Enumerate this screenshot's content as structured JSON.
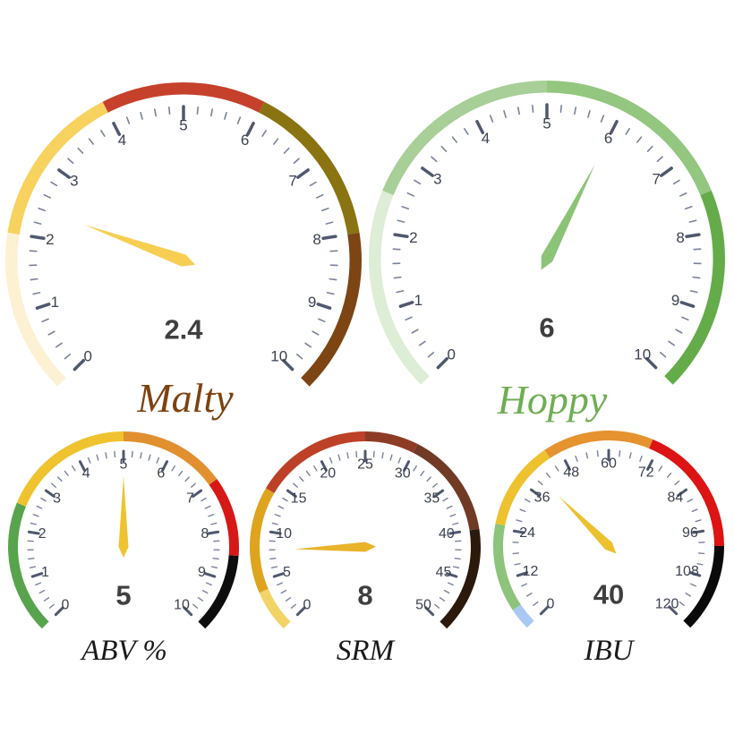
{
  "page": {
    "background": "#ffffff"
  },
  "chart_data": [
    {
      "type": "gauge",
      "name": "malty",
      "title": "Malty",
      "title_color": "#7E4210",
      "min": 0,
      "max": 10,
      "value": 2.4,
      "value_display": "2.4",
      "value_color": "#3F3F3F",
      "start_angle": -135,
      "end_angle": 135,
      "tick_step": 1,
      "minor_per_major": 4,
      "tick_labels": [
        "0",
        "1",
        "2",
        "3",
        "4",
        "5",
        "6",
        "7",
        "8",
        "9",
        "10"
      ],
      "bands": [
        {
          "from": 0,
          "to": 2,
          "color": "#FCF1D2"
        },
        {
          "from": 2,
          "to": 4,
          "color": "#F7D25E"
        },
        {
          "from": 4,
          "to": 6,
          "color": "#C5412B"
        },
        {
          "from": 6,
          "to": 8,
          "color": "#8A7311"
        },
        {
          "from": 8,
          "to": 10,
          "color": "#7D4513"
        }
      ],
      "needle_color": "#F8CE52"
    },
    {
      "type": "gauge",
      "name": "hoppy",
      "title": "Hoppy",
      "title_color": "#6FAE53",
      "min": 0,
      "max": 10,
      "value": 6,
      "value_display": "6",
      "value_color": "#3F3F3F",
      "start_angle": -135,
      "end_angle": 135,
      "tick_step": 1,
      "minor_per_major": 4,
      "tick_labels": [
        "0",
        "1",
        "2",
        "3",
        "4",
        "5",
        "6",
        "7",
        "8",
        "9",
        "10"
      ],
      "bands": [
        {
          "from": 0,
          "to": 2.5,
          "color": "#DEEDD5"
        },
        {
          "from": 2.5,
          "to": 5,
          "color": "#A8CF98"
        },
        {
          "from": 5,
          "to": 7.5,
          "color": "#93C67F"
        },
        {
          "from": 7.5,
          "to": 10,
          "color": "#64AC4A"
        }
      ],
      "needle_color": "#8BC377"
    },
    {
      "type": "gauge",
      "name": "abv",
      "title": "ABV %",
      "title_color": "#1A1A1A",
      "min": 0,
      "max": 10,
      "value": 5,
      "value_display": "5",
      "value_color": "#3F3F3F",
      "start_angle": -135,
      "end_angle": 135,
      "tick_step": 1,
      "minor_per_major": 4,
      "tick_labels": [
        "0",
        "1",
        "2",
        "3",
        "4",
        "5",
        "6",
        "7",
        "8",
        "9",
        "10"
      ],
      "bands": [
        {
          "from": 0,
          "to": 2.5,
          "color": "#58A44C"
        },
        {
          "from": 2.5,
          "to": 5,
          "color": "#EFC32F"
        },
        {
          "from": 5,
          "to": 7,
          "color": "#E2902F"
        },
        {
          "from": 7,
          "to": 8.5,
          "color": "#D81717"
        },
        {
          "from": 8.5,
          "to": 10,
          "color": "#0D0D0D"
        }
      ],
      "needle_color": "#EFC32F"
    },
    {
      "type": "gauge",
      "name": "srm",
      "title": "SRM",
      "title_color": "#1A1A1A",
      "min": 0,
      "max": 50,
      "value": 8,
      "value_display": "8",
      "value_color": "#3F3F3F",
      "start_angle": -135,
      "end_angle": 135,
      "tick_step": 5,
      "minor_per_major": 4,
      "tick_labels": [
        "0",
        "5",
        "10",
        "15",
        "20",
        "25",
        "30",
        "35",
        "40",
        "45",
        "50"
      ],
      "bands": [
        {
          "from": 0,
          "to": 4,
          "color": "#F2D466"
        },
        {
          "from": 4,
          "to": 14,
          "color": "#DFA41E"
        },
        {
          "from": 14,
          "to": 25,
          "color": "#BC4126"
        },
        {
          "from": 25,
          "to": 30,
          "color": "#8E3B26"
        },
        {
          "from": 30,
          "to": 40,
          "color": "#713A25"
        },
        {
          "from": 40,
          "to": 50,
          "color": "#2B190C"
        }
      ],
      "needle_color": "#E9B32A"
    },
    {
      "type": "gauge",
      "name": "ibu",
      "title": "IBU",
      "title_color": "#1A1A1A",
      "min": 0,
      "max": 120,
      "value": 40,
      "value_display": "40",
      "value_color": "#3F3F3F",
      "start_angle": -135,
      "end_angle": 135,
      "tick_step": 12,
      "minor_per_major": 3,
      "tick_labels": [
        "0",
        "12",
        "24",
        "36",
        "48",
        "60",
        "72",
        "84",
        "96",
        "108",
        "120"
      ],
      "bands": [
        {
          "from": 0,
          "to": 5,
          "color": "#A9C9F2"
        },
        {
          "from": 5,
          "to": 25,
          "color": "#8CC47B"
        },
        {
          "from": 25,
          "to": 45,
          "color": "#EEC22F"
        },
        {
          "from": 45,
          "to": 70,
          "color": "#E5922F"
        },
        {
          "from": 70,
          "to": 100,
          "color": "#DC1414"
        },
        {
          "from": 100,
          "to": 120,
          "color": "#0A0A0A"
        }
      ],
      "needle_color": "#ECC12F"
    }
  ],
  "style": {
    "tick_major_color": "#4F586E",
    "tick_minor_color": "#7A829B",
    "tick_label_color": "#3C4250"
  }
}
